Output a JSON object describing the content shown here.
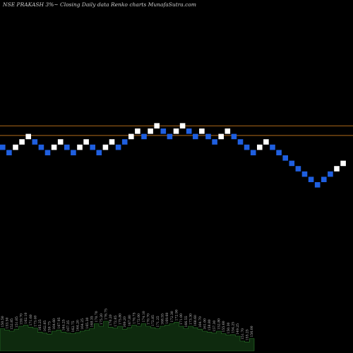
{
  "title": "NSE PRAKASH 3%~  Closing Daily data  Renko  charts MunafaSutra.com",
  "colors": {
    "background": "#000000",
    "brick_up": "#ffffff",
    "brick_down": "#1f5fe0",
    "reference_line": "#b06a1a",
    "volume_fill": "#0e2a0e",
    "volume_top": "#2a7a2a",
    "label": "#bdbdbd"
  },
  "chart_data": {
    "type": "renko",
    "title": "NSE PRAKASH 3%~  Closing Daily data  Renko  charts MunafaSutra.com",
    "brick_percent": 3,
    "bricks": [
      {
        "dir": "down",
        "close": 2
      },
      {
        "dir": "down",
        "close": 1
      },
      {
        "dir": "up",
        "close": 2
      },
      {
        "dir": "up",
        "close": 3
      },
      {
        "dir": "up",
        "close": 4
      },
      {
        "dir": "down",
        "close": 3
      },
      {
        "dir": "down",
        "close": 2
      },
      {
        "dir": "down",
        "close": 1
      },
      {
        "dir": "up",
        "close": 2
      },
      {
        "dir": "up",
        "close": 3
      },
      {
        "dir": "down",
        "close": 2
      },
      {
        "dir": "down",
        "close": 1
      },
      {
        "dir": "up",
        "close": 2
      },
      {
        "dir": "up",
        "close": 3
      },
      {
        "dir": "down",
        "close": 2
      },
      {
        "dir": "down",
        "close": 1
      },
      {
        "dir": "up",
        "close": 2
      },
      {
        "dir": "up",
        "close": 3
      },
      {
        "dir": "down",
        "close": 2
      },
      {
        "dir": "down",
        "close": 3
      },
      {
        "dir": "up",
        "close": 4
      },
      {
        "dir": "up",
        "close": 5
      },
      {
        "dir": "down",
        "close": 4
      },
      {
        "dir": "up",
        "close": 5
      },
      {
        "dir": "up",
        "close": 6
      },
      {
        "dir": "down",
        "close": 5
      },
      {
        "dir": "down",
        "close": 4
      },
      {
        "dir": "up",
        "close": 5
      },
      {
        "dir": "up",
        "close": 6
      },
      {
        "dir": "down",
        "close": 5
      },
      {
        "dir": "down",
        "close": 4
      },
      {
        "dir": "up",
        "close": 5
      },
      {
        "dir": "down",
        "close": 4
      },
      {
        "dir": "down",
        "close": 3
      },
      {
        "dir": "up",
        "close": 4
      },
      {
        "dir": "up",
        "close": 5
      },
      {
        "dir": "down",
        "close": 4
      },
      {
        "dir": "down",
        "close": 3
      },
      {
        "dir": "down",
        "close": 2
      },
      {
        "dir": "down",
        "close": 1
      },
      {
        "dir": "up",
        "close": 2
      },
      {
        "dir": "up",
        "close": 3
      },
      {
        "dir": "down",
        "close": 2
      },
      {
        "dir": "down",
        "close": 1
      },
      {
        "dir": "down",
        "close": 0
      },
      {
        "dir": "down",
        "close": -1
      },
      {
        "dir": "down",
        "close": -2
      },
      {
        "dir": "down",
        "close": -3
      },
      {
        "dir": "down",
        "close": -4
      },
      {
        "dir": "down",
        "close": -5
      },
      {
        "dir": "down",
        "close": -4
      },
      {
        "dir": "down",
        "close": -3
      },
      {
        "dir": "up",
        "close": -2
      },
      {
        "dir": "up",
        "close": -1
      }
    ],
    "reference_lines": [
      6.5,
      4.7
    ],
    "volume_labels": [
      "150.50",
      "153.50",
      "152.85",
      "151.85",
      "159.70",
      "162.10",
      "171.60",
      "173.40",
      "165.25",
      "162.85",
      "159.75",
      "164.60",
      "167.95",
      "164.25",
      "167.35",
      "162.75",
      "164.20",
      "164.25",
      "165.30",
      "168.35",
      "170.70",
      "175.20",
      "176.75",
      "170.20",
      "172.85",
      "175.80",
      "169.20",
      "167.80",
      "170.75",
      "172.00",
      "174.10",
      "170.70",
      "172.85",
      "171.25",
      "168.55",
      "169.60",
      "172.30",
      "172.90",
      "171.00",
      "166.55",
      "173.30",
      "168.60",
      "164.70",
      "161.00",
      "158.80",
      "157.30",
      "152.80",
      "155.60",
      "150.30",
      "154.25",
      "149.25",
      "151.70",
      "155.25",
      "156.00"
    ],
    "volume_values": [
      0.45,
      0.42,
      0.4,
      0.44,
      0.5,
      0.52,
      0.48,
      0.46,
      0.38,
      0.36,
      0.34,
      0.4,
      0.42,
      0.38,
      0.36,
      0.35,
      0.37,
      0.4,
      0.42,
      0.45,
      0.55,
      0.5,
      0.6,
      0.48,
      0.46,
      0.5,
      0.44,
      0.47,
      0.52,
      0.5,
      0.55,
      0.5,
      0.47,
      0.45,
      0.5,
      0.52,
      0.55,
      0.58,
      0.5,
      0.45,
      0.5,
      0.47,
      0.44,
      0.4,
      0.38,
      0.36,
      0.4,
      0.35,
      0.32,
      0.33,
      0.3,
      0.2,
      0.18,
      0.25
    ]
  }
}
